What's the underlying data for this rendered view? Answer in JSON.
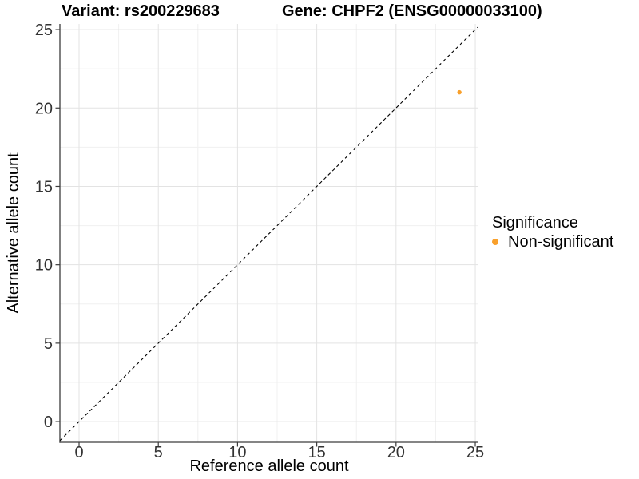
{
  "chart_data": {
    "type": "scatter",
    "title_left": "Variant: rs200229683",
    "title_right": "Gene: CHPF2 (ENSG00000033100)",
    "xlabel": "Reference allele count",
    "ylabel": "Alternative allele count",
    "x_ticks": [
      0,
      5,
      10,
      15,
      20,
      25
    ],
    "y_ticks": [
      0,
      5,
      10,
      15,
      20,
      25
    ],
    "x_minor_ticks": [
      2.5,
      7.5,
      12.5,
      17.5,
      22.5
    ],
    "y_minor_ticks": [
      2.5,
      7.5,
      12.5,
      17.5,
      22.5
    ],
    "xlim": [
      -1.21,
      25.15
    ],
    "ylim": [
      -1.32,
      25.36
    ],
    "grid": true,
    "legend_position": "right",
    "identity_line": {
      "slope": 1,
      "intercept": 0,
      "style": "dashed",
      "color": "#000000"
    },
    "series": [
      {
        "name": "Non-significant",
        "color": "#F9A02B",
        "point_radius": 2.7,
        "points": [
          [
            24,
            21
          ]
        ]
      }
    ],
    "legend": {
      "title": "Significance",
      "entries": [
        {
          "label": "Non-significant",
          "color": "#F9A02B"
        }
      ]
    }
  },
  "colors": {
    "background": "#FFFFFF",
    "grid_major": "#E3E3E3",
    "grid_minor": "#F0F0F0",
    "axis_line": "#3C3C3C",
    "tick_text": "#333333",
    "title_text": "#000000",
    "point": "#F9A02B"
  }
}
